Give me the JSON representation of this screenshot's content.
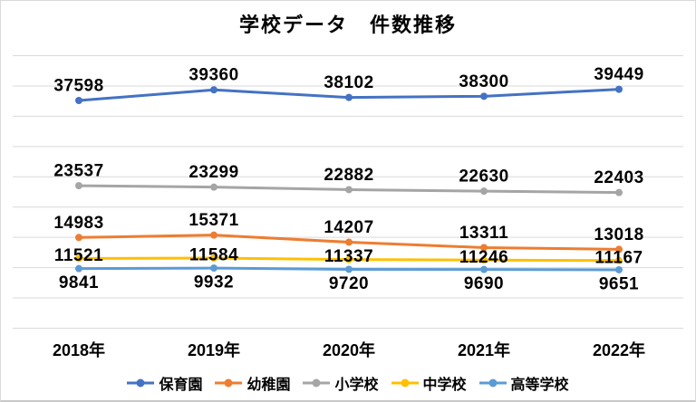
{
  "title": "学校データ　件数推移",
  "chart_data": {
    "type": "line",
    "categories": [
      "2018年",
      "2019年",
      "2020年",
      "2021年",
      "2022年"
    ],
    "series": [
      {
        "name": "保育園",
        "color": "#4472C4",
        "values": [
          37598,
          39360,
          38102,
          38300,
          39449
        ],
        "label_position": "above"
      },
      {
        "name": "幼稚園",
        "color": "#ED7D31",
        "values": [
          14983,
          15371,
          14207,
          13311,
          13018
        ],
        "label_position": "above"
      },
      {
        "name": "小学校",
        "color": "#A5A5A5",
        "values": [
          23537,
          23299,
          22882,
          22630,
          22403
        ],
        "label_position": "above"
      },
      {
        "name": "中学校",
        "color": "#FFC000",
        "values": [
          11521,
          11584,
          11337,
          11246,
          11167
        ],
        "label_position": "center"
      },
      {
        "name": "高等学校",
        "color": "#5B9BD5",
        "values": [
          9841,
          9932,
          9720,
          9690,
          9651
        ],
        "label_position": "below"
      }
    ],
    "ylim": [
      0,
      45000
    ],
    "gridline_step": 5000,
    "grid": true,
    "gridline_color": "#D9D9D9",
    "data_label_color": "#000000",
    "legend_position": "bottom",
    "data_labels": true
  }
}
